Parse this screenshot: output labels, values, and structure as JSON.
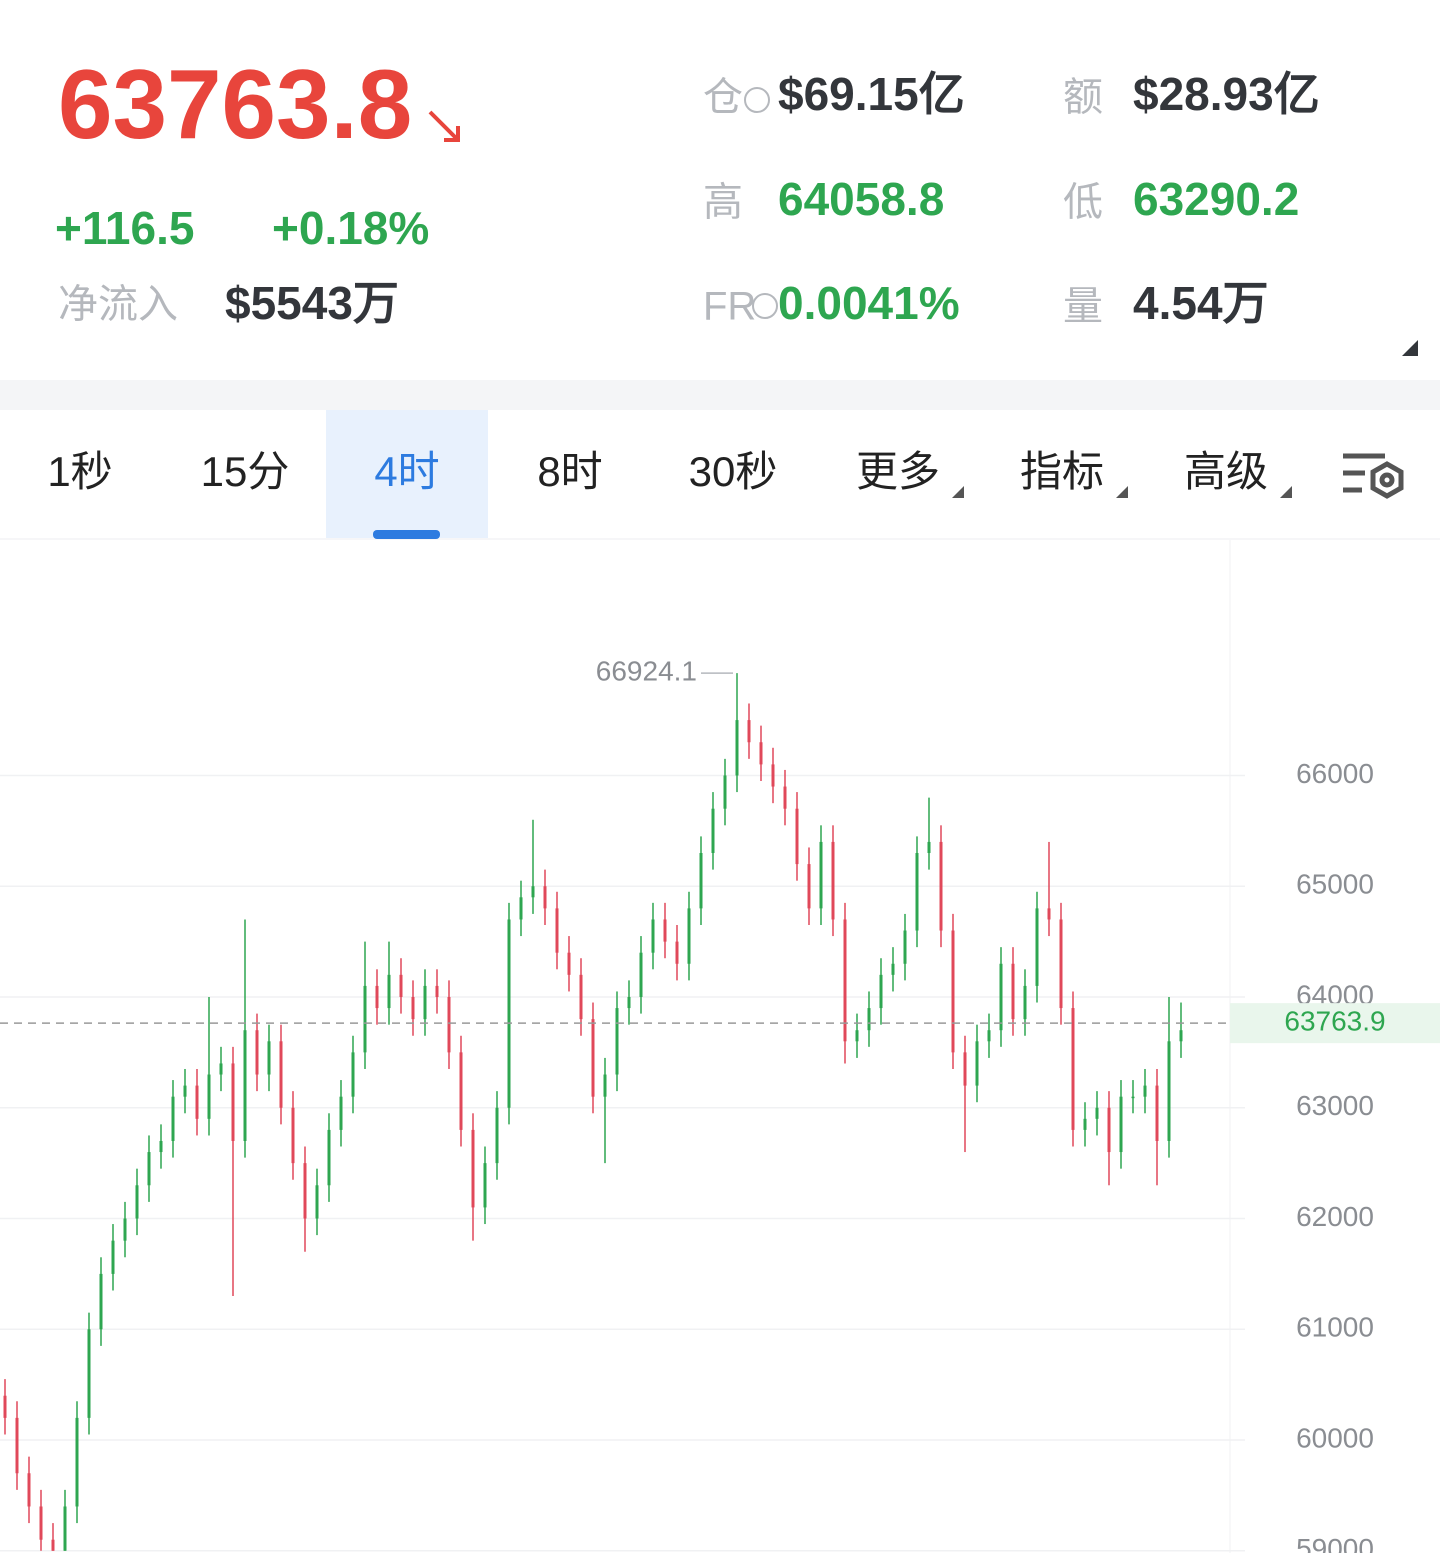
{
  "header": {
    "price": "63763.8",
    "change": "+116.5",
    "change_pct": "+0.18%",
    "net_inflow_label": "净流入",
    "net_inflow": "$5543万",
    "stats": [
      {
        "label": "仓",
        "value": "$69.15亿"
      },
      {
        "label": "额",
        "value": "$28.93亿"
      },
      {
        "label": "高",
        "value": "64058.8"
      },
      {
        "label": "低",
        "value": "63290.2"
      },
      {
        "label": "FR",
        "value": "0.0041%"
      },
      {
        "label": "量",
        "value": "4.54万"
      }
    ]
  },
  "tabs": [
    "1秒",
    "15分",
    "4时",
    "8时",
    "30秒",
    "更多",
    "指标",
    "高级"
  ],
  "chart_data": {
    "type": "candlestick",
    "open": [
      60400,
      60200,
      59700,
      59400,
      59100,
      59000,
      59400,
      60200,
      61000,
      61500,
      61800,
      62000,
      62300,
      62600,
      62700,
      63100,
      63200,
      62900,
      63300,
      63400,
      62700,
      63700,
      63300,
      63600,
      63000,
      62500,
      62000,
      62300,
      62800,
      63100,
      63500,
      64100,
      63900,
      64200,
      64000,
      63800,
      64100,
      64000,
      63500,
      62800,
      62100,
      62500,
      63000,
      64700,
      64900,
      65000,
      64800,
      64400,
      64200,
      63800,
      63100,
      63300,
      63900,
      64000,
      64400,
      64700,
      64500,
      64300,
      64800,
      65300,
      65700,
      66000,
      66500,
      66300,
      66100,
      65900,
      65700,
      65200,
      64800,
      65400,
      64700,
      63600,
      63700,
      63900,
      64200,
      64300,
      64600,
      65300,
      65400,
      64600,
      63500,
      63200,
      63600,
      63700,
      64300,
      63800,
      64100,
      64800,
      64700,
      63900,
      62800,
      62900,
      63000,
      62600,
      63100,
      63100,
      63200,
      62700,
      63600
    ],
    "high": [
      60550,
      60350,
      59850,
      59550,
      59250,
      59550,
      60350,
      61150,
      61650,
      61950,
      62150,
      62450,
      62750,
      62850,
      63250,
      63350,
      63350,
      64000,
      63550,
      63550,
      64700,
      63850,
      63750,
      63750,
      63150,
      62650,
      62450,
      62950,
      63250,
      63650,
      64500,
      64250,
      64500,
      64350,
      64150,
      64250,
      64250,
      64150,
      63650,
      62950,
      62650,
      63150,
      64850,
      65050,
      65600,
      65150,
      64950,
      64550,
      64350,
      63950,
      63450,
      64050,
      64150,
      64550,
      64850,
      64850,
      64650,
      64950,
      65450,
      65850,
      66150,
      66924.1,
      66650,
      66450,
      66250,
      66050,
      65850,
      65350,
      65550,
      65550,
      64850,
      63850,
      64050,
      64350,
      64450,
      64750,
      65450,
      65800,
      65550,
      64750,
      63650,
      63750,
      63850,
      64450,
      64450,
      64250,
      64950,
      65400,
      64850,
      64050,
      63050,
      63150,
      63150,
      63250,
      63250,
      63350,
      63350,
      64000,
      63950
    ],
    "low": [
      60050,
      59550,
      59250,
      59000,
      59000,
      59000,
      59250,
      60050,
      60850,
      61350,
      61650,
      61850,
      62150,
      62450,
      62550,
      62950,
      62750,
      62750,
      63150,
      61300,
      62550,
      63150,
      63150,
      62850,
      62350,
      61700,
      61850,
      62150,
      62650,
      62950,
      63350,
      63750,
      63750,
      63850,
      63650,
      63650,
      63850,
      63350,
      62650,
      61800,
      61950,
      62350,
      62850,
      64550,
      64750,
      64650,
      64250,
      64050,
      63650,
      62950,
      62500,
      63150,
      63750,
      63850,
      64250,
      64350,
      64150,
      64150,
      64650,
      65150,
      65550,
      65850,
      66150,
      65950,
      65750,
      65550,
      65050,
      64650,
      64650,
      64550,
      63400,
      63450,
      63550,
      63750,
      64050,
      64150,
      64450,
      65150,
      64450,
      63350,
      62600,
      63050,
      63450,
      63550,
      63650,
      63650,
      63950,
      64550,
      63750,
      62650,
      62650,
      62750,
      62300,
      62450,
      62950,
      62950,
      62300,
      62550,
      63450
    ],
    "close": [
      60200,
      59700,
      59400,
      59100,
      59000,
      59400,
      60200,
      61000,
      61500,
      61800,
      62000,
      62300,
      62600,
      62700,
      63100,
      63200,
      62900,
      63300,
      63400,
      62700,
      63700,
      63300,
      63600,
      63000,
      62500,
      62000,
      62300,
      62800,
      63100,
      63500,
      64100,
      63900,
      64200,
      64000,
      63800,
      64100,
      64000,
      63500,
      62800,
      62100,
      62500,
      63000,
      64700,
      64900,
      65000,
      64800,
      64400,
      64200,
      63800,
      63100,
      63300,
      63900,
      64000,
      64400,
      64700,
      64500,
      64300,
      64800,
      65300,
      65700,
      66000,
      66500,
      66300,
      66100,
      65900,
      65700,
      65200,
      64800,
      65400,
      64700,
      63600,
      63700,
      63900,
      64200,
      64300,
      64600,
      65300,
      65400,
      64600,
      63500,
      63200,
      63600,
      63700,
      64300,
      63800,
      64100,
      64800,
      64700,
      63900,
      62800,
      62900,
      63000,
      62600,
      63100,
      63100,
      63200,
      62700,
      63600,
      63700
    ],
    "up_color": "#2ea650",
    "down_color": "#e0485a",
    "last_price": 63763.9,
    "ylim": [
      58980,
      68126
    ],
    "yticks": [
      59000,
      60000,
      61000,
      62000,
      63000,
      64000,
      65000,
      66000
    ],
    "grid": true
  }
}
